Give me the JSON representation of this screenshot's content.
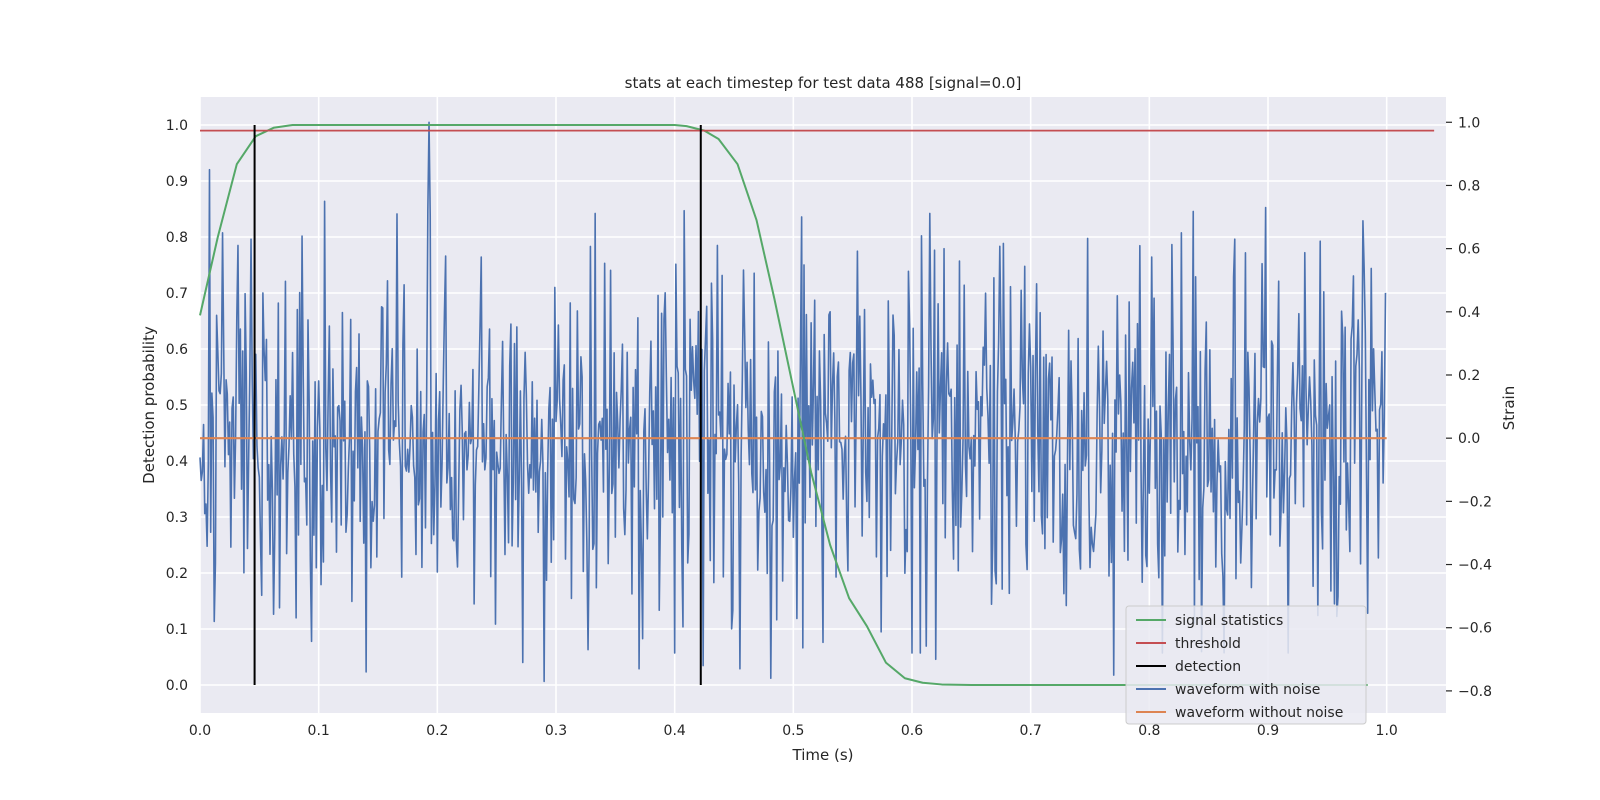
{
  "chart_data": {
    "type": "line",
    "title": "stats at each timestep for test data 488 [signal=0.0]",
    "xlabel": "Time (s)",
    "ylabel_left": "Detection probability",
    "ylabel_right": "Strain",
    "xlim": [
      0.0,
      1.05
    ],
    "ylim_left": [
      -0.05,
      1.05
    ],
    "ylim_right": [
      -0.87,
      1.08
    ],
    "x_ticks": [
      "0.0",
      "0.1",
      "0.2",
      "0.3",
      "0.4",
      "0.5",
      "0.6",
      "0.7",
      "0.8",
      "0.9",
      "1.0"
    ],
    "y_ticks_left": [
      "0.0",
      "0.1",
      "0.2",
      "0.3",
      "0.4",
      "0.5",
      "0.6",
      "0.7",
      "0.8",
      "0.9",
      "1.0"
    ],
    "y_ticks_right": [
      "−0.8",
      "−0.6",
      "−0.4",
      "−0.2",
      "0.0",
      "0.2",
      "0.4",
      "0.6",
      "0.8",
      "1.0"
    ],
    "grid": true,
    "legend_position": "lower-right",
    "colors": {
      "background": "#eaeaf2",
      "grid": "#ffffff",
      "signal_statistics": "#55a868",
      "threshold": "#c44e52",
      "detection": "#000000",
      "waveform_with_noise": "#4c72b0",
      "waveform_without_noise": "#dd8452"
    },
    "series": [
      {
        "name": "signal statistics",
        "axis": "left",
        "color": "#55a868",
        "x": [
          0.0,
          0.015,
          0.031,
          0.047,
          0.062,
          0.078,
          0.1,
          0.15,
          0.2,
          0.25,
          0.3,
          0.35,
          0.4,
          0.41,
          0.425,
          0.437,
          0.453,
          0.469,
          0.484,
          0.5,
          0.515,
          0.531,
          0.547,
          0.562,
          0.578,
          0.594,
          0.609,
          0.625,
          0.65,
          0.7,
          0.75,
          0.8,
          0.85,
          0.9,
          0.95,
          0.984
        ],
        "values": [
          0.66,
          0.8,
          0.93,
          0.98,
          0.995,
          1.0,
          1.0,
          1.0,
          1.0,
          1.0,
          1.0,
          1.0,
          1.0,
          0.998,
          0.99,
          0.975,
          0.93,
          0.83,
          0.69,
          0.53,
          0.38,
          0.25,
          0.155,
          0.105,
          0.04,
          0.012,
          0.004,
          0.001,
          0.0,
          0.0,
          0.0,
          0.0,
          0.0,
          0.0,
          0.0,
          0.0
        ]
      },
      {
        "name": "threshold",
        "axis": "left",
        "color": "#c44e52",
        "x": [
          0.0,
          1.04
        ],
        "values": [
          0.99,
          0.99
        ]
      },
      {
        "name": "detection",
        "axis": "left",
        "color": "#000000",
        "type": "vlines",
        "x": [
          0.046,
          0.422
        ],
        "ymin": 0.0,
        "ymax": 1.0
      },
      {
        "name": "waveform with noise",
        "axis": "right",
        "color": "#4c72b0",
        "noise_std": 0.28,
        "x_range": [
          0.0,
          0.999
        ],
        "n_points": 1000,
        "peaks": [
          {
            "x": 0.008,
            "y": 0.85
          },
          {
            "x": 0.012,
            "y": -0.58
          },
          {
            "x": 0.019,
            "y": 0.65
          },
          {
            "x": 0.032,
            "y": 0.61
          },
          {
            "x": 0.043,
            "y": 0.63
          },
          {
            "x": 0.098,
            "y": -0.41
          },
          {
            "x": 0.105,
            "y": 0.75
          },
          {
            "x": 0.14,
            "y": -0.74
          },
          {
            "x": 0.166,
            "y": 0.71
          },
          {
            "x": 0.193,
            "y": 1.0
          },
          {
            "x": 0.272,
            "y": -0.71
          },
          {
            "x": 0.29,
            "y": -0.77
          },
          {
            "x": 0.37,
            "y": -0.73
          },
          {
            "x": 0.424,
            "y": -0.72
          },
          {
            "x": 0.455,
            "y": -0.73
          },
          {
            "x": 0.481,
            "y": -0.76
          },
          {
            "x": 0.62,
            "y": -0.7
          },
          {
            "x": 0.627,
            "y": 0.6
          },
          {
            "x": 0.77,
            "y": -0.75
          },
          {
            "x": 0.827,
            "y": 0.65
          },
          {
            "x": 0.872,
            "y": 0.63
          },
          {
            "x": 0.898,
            "y": 0.73
          },
          {
            "x": 0.999,
            "y": 0.46
          }
        ]
      },
      {
        "name": "waveform without noise",
        "axis": "right",
        "color": "#dd8452",
        "x": [
          0.0,
          1.0
        ],
        "values": [
          0.0,
          0.0
        ]
      }
    ]
  }
}
